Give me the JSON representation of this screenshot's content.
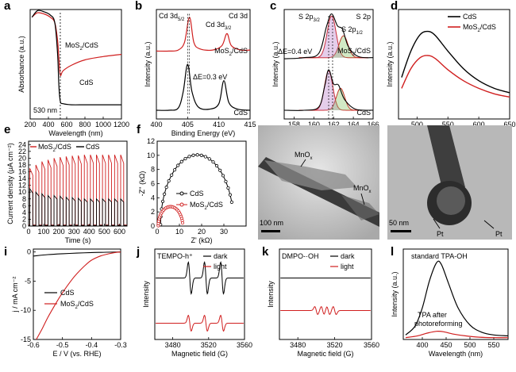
{
  "panels": [
    {
      "id": "a",
      "letter": "a",
      "type": "line",
      "xlabel": "Wavelength (nm)",
      "ylabel": "Absorbance (a.u.)",
      "xlim": [
        200,
        1200
      ],
      "xticks": [
        200,
        400,
        600,
        800,
        1000,
        1200
      ],
      "ylim": [
        0,
        1
      ],
      "yticks": [],
      "series": [
        {
          "name": "MoS2/CdS",
          "color": "#d01f1f",
          "x": [
            220,
            280,
            350,
            420,
            470,
            500,
            515,
            530,
            560,
            650,
            800,
            1000,
            1200
          ],
          "y": [
            0.93,
            0.97,
            0.96,
            0.93,
            0.88,
            0.72,
            0.55,
            0.4,
            0.44,
            0.49,
            0.54,
            0.57,
            0.59
          ]
        },
        {
          "name": "CdS",
          "color": "#000000",
          "x": [
            220,
            280,
            350,
            420,
            470,
            500,
            515,
            530,
            560,
            650,
            800,
            1000,
            1200
          ],
          "y": [
            0.93,
            0.99,
            0.98,
            0.95,
            0.88,
            0.6,
            0.3,
            0.16,
            0.14,
            0.13,
            0.13,
            0.13,
            0.13
          ]
        }
      ],
      "annotations": [
        {
          "text": "530 nm"
        }
      ],
      "legend": [
        {
          "text": "MoS",
          "sub": "2",
          "rest": "/CdS",
          "color": "#d01f1f"
        },
        {
          "text": "CdS",
          "color": "#000000"
        }
      ]
    },
    {
      "id": "b",
      "letter": "b",
      "type": "line",
      "xlabel": "Binding Energy (eV)",
      "ylabel": "Intensity (a.u.)",
      "xlim": [
        400,
        415
      ],
      "xticks": [
        400,
        405,
        410,
        415
      ],
      "ylim": [
        0,
        1
      ],
      "yticks": [],
      "series": [
        {
          "name": "MoS2/CdS",
          "color": "#d01f1f",
          "x": [
            400,
            402,
            403.5,
            404.5,
            405.3,
            406,
            407,
            409,
            410.5,
            411.3,
            412,
            413.5,
            415
          ],
          "y": [
            0.62,
            0.62,
            0.63,
            0.7,
            0.93,
            0.7,
            0.64,
            0.63,
            0.67,
            0.78,
            0.67,
            0.63,
            0.63
          ]
        },
        {
          "name": "CdS",
          "color": "#000000",
          "x": [
            400,
            402,
            403.5,
            404.3,
            405,
            405.7,
            406.7,
            408.5,
            410,
            410.8,
            411.6,
            413,
            415
          ],
          "y": [
            0.08,
            0.08,
            0.1,
            0.25,
            0.5,
            0.25,
            0.11,
            0.09,
            0.14,
            0.35,
            0.15,
            0.09,
            0.08
          ]
        }
      ],
      "annotations": [
        {
          "text": "Cd 3d",
          "sub": "5/2"
        },
        {
          "text": "Cd 3d",
          "sub": "3/2"
        },
        {
          "text": "Cd 3d"
        },
        {
          "text": "ΔE=0.3 eV"
        }
      ],
      "labels": [
        {
          "text": "MoS",
          "sub": "2",
          "rest": "/CdS",
          "color": "#d01f1f"
        },
        {
          "text": "CdS",
          "color": "#000000"
        }
      ]
    },
    {
      "id": "c",
      "letter": "c",
      "type": "line",
      "xlabel": "Binding Energy (eV)",
      "ylabel": "Intensity (a.u.)",
      "xlim": [
        157,
        166
      ],
      "xticks": [
        158,
        160,
        162,
        164,
        166
      ],
      "ylim": [
        0,
        1
      ],
      "yticks": [],
      "series": [
        {
          "name": "MoS2/CdS",
          "color": "#000000",
          "x": [
            157,
            159,
            160.5,
            161.3,
            161.8,
            162.4,
            162.9,
            163.5,
            164.5,
            166
          ],
          "y": [
            0.55,
            0.56,
            0.6,
            0.85,
            0.96,
            0.85,
            0.82,
            0.66,
            0.57,
            0.56
          ]
        },
        {
          "name": "CdS",
          "color": "#000000",
          "x": [
            157,
            159,
            160.5,
            161.1,
            161.5,
            162,
            162.5,
            163.1,
            164.2,
            166
          ],
          "y": [
            0.08,
            0.08,
            0.11,
            0.3,
            0.45,
            0.32,
            0.31,
            0.18,
            0.09,
            0.08
          ]
        }
      ],
      "annotations": [
        {
          "text": "S 2p",
          "sub": "3/2"
        },
        {
          "text": "S 2p"
        },
        {
          "text": "S 2p",
          "sub": "1/2"
        },
        {
          "text": "ΔE=0.4 eV"
        }
      ],
      "labels": [
        {
          "text": "MoS",
          "sub": "2",
          "rest": "/CdS",
          "color": "#000000"
        },
        {
          "text": "CdS",
          "color": "#000000"
        }
      ]
    },
    {
      "id": "d",
      "letter": "d",
      "type": "line",
      "xlabel": "Wavelength (nm)",
      "ylabel": "Intensity (a.u.)",
      "xlim": [
        470,
        650
      ],
      "xticks": [
        500,
        550,
        600,
        650
      ],
      "ylim": [
        0,
        1
      ],
      "yticks": [],
      "series": [
        {
          "name": "CdS",
          "color": "#000000",
          "x": [
            475,
            490,
            505,
            518,
            530,
            550,
            575,
            600,
            625,
            650
          ],
          "y": [
            0.38,
            0.62,
            0.77,
            0.8,
            0.76,
            0.62,
            0.46,
            0.35,
            0.28,
            0.24
          ]
        },
        {
          "name": "MoS2/CdS",
          "color": "#d01f1f",
          "x": [
            475,
            490,
            505,
            518,
            530,
            550,
            575,
            600,
            625,
            650
          ],
          "y": [
            0.28,
            0.46,
            0.56,
            0.58,
            0.55,
            0.45,
            0.35,
            0.28,
            0.23,
            0.2
          ]
        }
      ],
      "legend": [
        {
          "text": "CdS",
          "color": "#000000"
        },
        {
          "text": "MoS",
          "sub": "2",
          "rest": "/CdS",
          "color": "#d01f1f"
        }
      ]
    },
    {
      "id": "e",
      "letter": "e",
      "type": "line",
      "xlabel": "Time (s)",
      "ylabel": "Current density (μA cm⁻²)",
      "xlim": [
        0,
        650
      ],
      "xticks": [
        0,
        100,
        200,
        300,
        400,
        500,
        600
      ],
      "ylim": [
        0,
        25
      ],
      "yticks": [
        0,
        2,
        4,
        6,
        8,
        10,
        12,
        14,
        16,
        18,
        20,
        22,
        24
      ],
      "series": [
        {
          "name": "MoS2/CdS",
          "color": "#d01f1f",
          "on_levels": [
            17,
            18,
            19,
            19.5,
            20,
            20.3,
            20.5,
            20.7,
            20.8,
            21,
            21,
            21,
            21,
            21,
            21,
            21
          ]
        },
        {
          "name": "CdS",
          "color": "#000000",
          "on_levels": [
            11,
            10,
            9.5,
            9,
            9,
            8.8,
            8.5,
            8.4,
            8.2,
            8,
            8,
            8,
            8,
            8,
            8,
            8
          ]
        }
      ],
      "period_s": 40,
      "legend": [
        {
          "text": "MoS",
          "sub": "2",
          "rest": "/CdS",
          "color": "#d01f1f"
        },
        {
          "text": "CdS",
          "color": "#000000"
        }
      ]
    },
    {
      "id": "f",
      "letter": "f",
      "type": "scatter",
      "xlabel": "Z' (kΩ)",
      "ylabel": "-Z'' (kΩ)",
      "xlim": [
        0,
        40
      ],
      "xticks": [
        0,
        10,
        20,
        30
      ],
      "ylim": [
        0,
        12
      ],
      "yticks": [
        0,
        2,
        4,
        6,
        8,
        10,
        12
      ],
      "series": [
        {
          "name": "CdS",
          "color": "#000000",
          "center": 18,
          "radius": 16.5
        },
        {
          "name": "MoS2/CdS",
          "color": "#d01f1f",
          "center": 6,
          "radius": 5.5
        }
      ],
      "legend": [
        {
          "text": "CdS",
          "color": "#000000"
        },
        {
          "text": "MoS",
          "sub": "2",
          "rest": "/CdS",
          "color": "#d01f1f"
        }
      ]
    },
    {
      "id": "g",
      "letter": "g",
      "type": "image",
      "labels": [
        {
          "text": "MnO",
          "sub": "x"
        },
        {
          "text": "MnO",
          "sub": "x"
        }
      ],
      "scale": "100 nm"
    },
    {
      "id": "h",
      "letter": "h",
      "type": "image",
      "labels": [
        {
          "text": "Pt"
        },
        {
          "text": "Pt"
        }
      ],
      "scale": "50 nm"
    },
    {
      "id": "i",
      "letter": "i",
      "type": "line",
      "xlabel": "E / V (vs. RHE)",
      "ylabel": "j / mA cm⁻²",
      "xlim": [
        -0.6,
        -0.3
      ],
      "xticks": [
        -0.6,
        -0.5,
        -0.4,
        -0.3
      ],
      "ylim": [
        -15,
        0.5
      ],
      "yticks": [
        -15,
        -10,
        -5,
        0
      ],
      "series": [
        {
          "name": "CdS",
          "color": "#000000",
          "x": [
            -0.6,
            -0.55,
            -0.5,
            -0.45,
            -0.4,
            -0.35,
            -0.3
          ],
          "y": [
            -0.7,
            -0.45,
            -0.3,
            -0.2,
            -0.1,
            -0.05,
            0
          ]
        },
        {
          "name": "MoS2/CdS",
          "color": "#d01f1f",
          "x": [
            -0.59,
            -0.57,
            -0.55,
            -0.52,
            -0.5,
            -0.47,
            -0.45,
            -0.42,
            -0.4,
            -0.37,
            -0.34,
            -0.32,
            -0.3
          ],
          "y": [
            -15,
            -13.2,
            -11.2,
            -8.6,
            -7,
            -4.9,
            -3.7,
            -2.2,
            -1.4,
            -0.7,
            -0.3,
            -0.1,
            0
          ]
        }
      ],
      "legend": [
        {
          "text": "CdS",
          "color": "#000000"
        },
        {
          "text": "MoS",
          "sub": "2",
          "rest": "/CdS",
          "color": "#d01f1f"
        }
      ]
    },
    {
      "id": "j",
      "letter": "j",
      "type": "line",
      "xlabel": "Magnetic field (G)",
      "ylabel": "Intensity",
      "xlim": [
        3460,
        3560
      ],
      "xticks": [
        3480,
        3520,
        3560
      ],
      "ylim": [
        0,
        1
      ],
      "yticks": [],
      "peaks": [
        3499,
        3517,
        3535
      ],
      "series": [
        {
          "name": "dark",
          "color": "#000000",
          "base": 0.68,
          "amp": 0.18
        },
        {
          "name": "light",
          "color": "#d01f1f",
          "base": 0.18,
          "amp": 0.09
        }
      ],
      "title": "TEMPO-h⁺",
      "legend": [
        {
          "text": "dark",
          "color": "#000000"
        },
        {
          "text": "light",
          "color": "#d01f1f"
        }
      ]
    },
    {
      "id": "k",
      "letter": "k",
      "type": "line",
      "xlabel": "Magnetic field (G)",
      "ylabel": "Intensity",
      "xlim": [
        3460,
        3560
      ],
      "xticks": [
        3480,
        3520,
        3560
      ],
      "ylim": [
        0,
        1
      ],
      "yticks": [],
      "peaks": [
        3500,
        3507,
        3513,
        3520
      ],
      "series": [
        {
          "name": "dark",
          "color": "#000000",
          "base": 0.68,
          "amp": 0.0
        },
        {
          "name": "light",
          "color": "#d01f1f",
          "base": 0.32,
          "amp": 0.045
        }
      ],
      "title": "DMPO-·OH",
      "legend": [
        {
          "text": "dark",
          "color": "#000000"
        },
        {
          "text": "light",
          "color": "#d01f1f"
        }
      ]
    },
    {
      "id": "l",
      "letter": "l",
      "type": "line",
      "xlabel": "Wavelength (nm)",
      "ylabel": "Intensity (a.u.)",
      "xlim": [
        360,
        580
      ],
      "xticks": [
        400,
        450,
        500,
        550
      ],
      "ylim": [
        0,
        1
      ],
      "yticks": [],
      "series": [
        {
          "name": "standard TPA-OH",
          "color": "#000000",
          "x": [
            365,
            385,
            400,
            415,
            430,
            440,
            455,
            475,
            500,
            525,
            550,
            580
          ],
          "y": [
            0.05,
            0.15,
            0.35,
            0.65,
            0.85,
            0.83,
            0.62,
            0.35,
            0.16,
            0.08,
            0.05,
            0.04
          ]
        },
        {
          "name": "TPA after photoreforming",
          "color": "#d01f1f",
          "x": [
            365,
            390,
            410,
            430,
            445,
            465,
            490,
            520,
            550,
            580
          ],
          "y": [
            0.02,
            0.04,
            0.07,
            0.09,
            0.085,
            0.06,
            0.04,
            0.025,
            0.02,
            0.02
          ]
        }
      ],
      "labels": [
        {
          "text": "standard TPA-OH",
          "color": "#000000"
        },
        {
          "text": "TPA after",
          "color": "#d01f1f"
        },
        {
          "text": "photoreforming",
          "color": "#d01f1f"
        }
      ]
    }
  ]
}
